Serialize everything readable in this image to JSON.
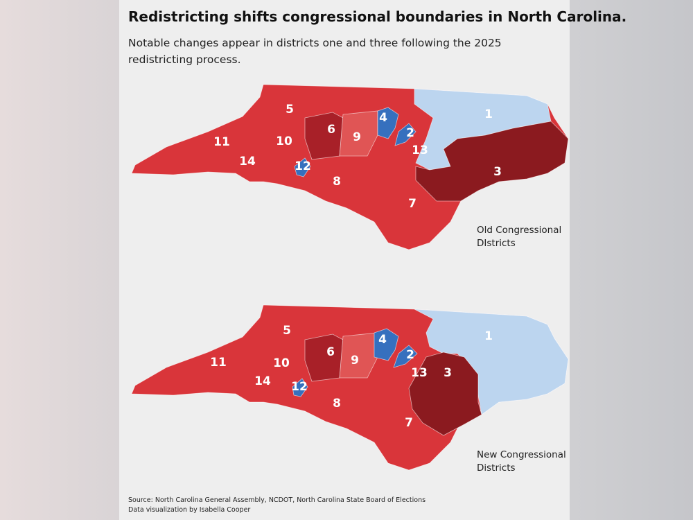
{
  "header": {
    "title": "Redistricting shifts congressional boundaries in North Carolina.",
    "subtitle": "Notable changes appear in districts one and three following the 2025 redistricting process."
  },
  "maps": [
    {
      "caption": "Old Congressional DIstricts",
      "districts": [
        "1",
        "2",
        "3",
        "4",
        "5",
        "6",
        "7",
        "8",
        "9",
        "10",
        "11",
        "12",
        "13",
        "14"
      ]
    },
    {
      "caption": "New Congressional Districts",
      "districts": [
        "1",
        "2",
        "3",
        "4",
        "5",
        "6",
        "7",
        "8",
        "9",
        "10",
        "11",
        "12",
        "13",
        "14"
      ]
    }
  ],
  "footer": {
    "source": "Source: North Carolina General Assembly, NCDOT, North Carolina State Board of Elections",
    "credit": "Data visualization by Isabella Cooper"
  }
}
